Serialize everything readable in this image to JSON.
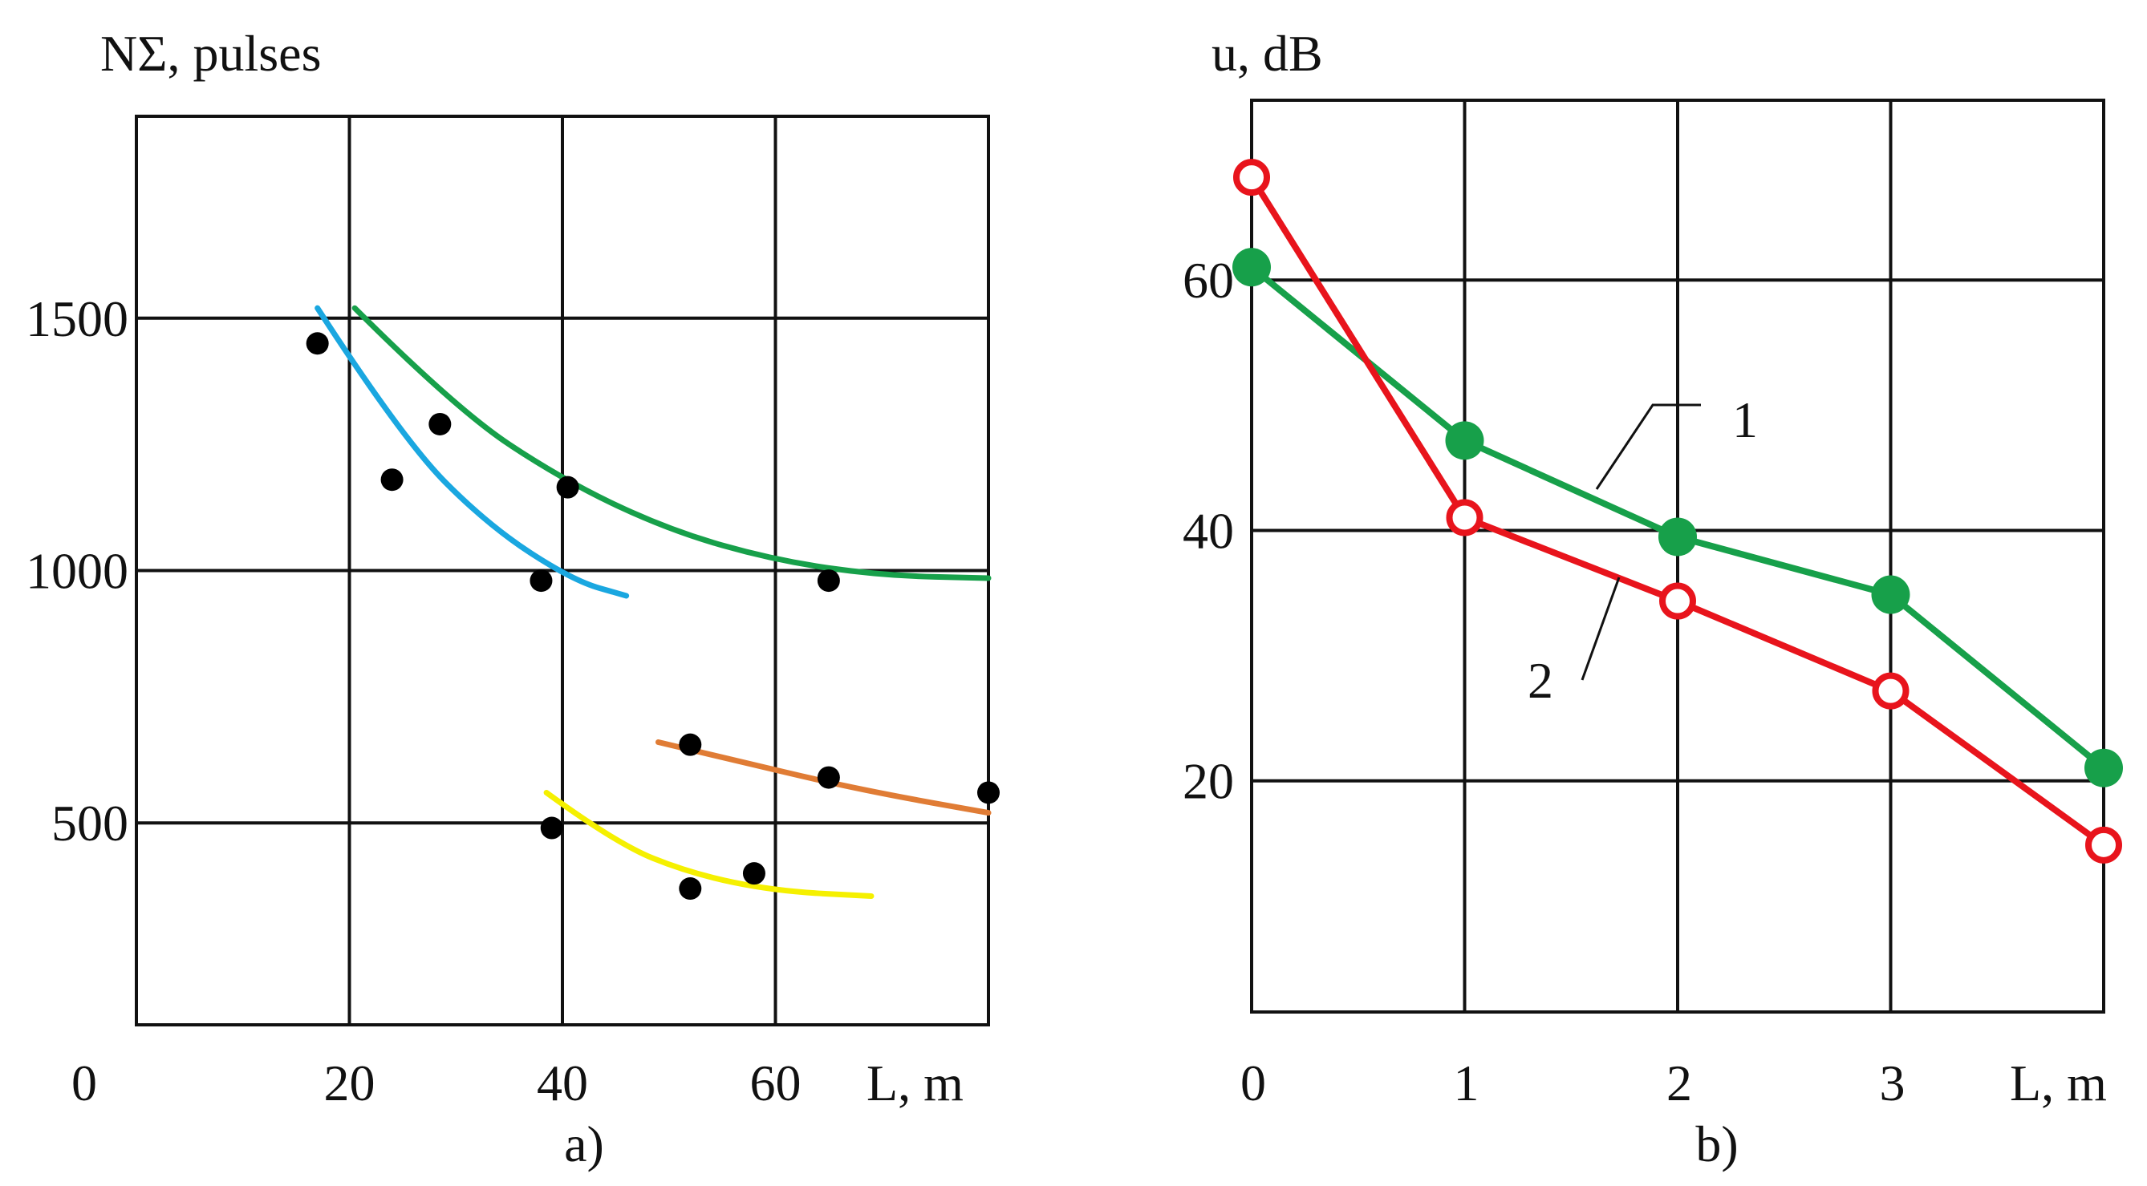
{
  "chart_data": [
    {
      "type": "scatter",
      "panel_label": "a)",
      "ylabel": "NΣ, pulses",
      "xlabel": "L, m",
      "xlim": [
        0,
        80
      ],
      "ylim": [
        100,
        1900
      ],
      "x_gridlines": [
        20,
        40,
        60
      ],
      "y_gridlines": [
        500,
        1000,
        1500
      ],
      "x_ticks": [
        "0",
        "20",
        "40",
        "60"
      ],
      "y_ticks": [
        "500",
        "1000",
        "1500"
      ],
      "grid": true,
      "points": [
        {
          "x": 17,
          "y": 1450
        },
        {
          "x": 24,
          "y": 1180
        },
        {
          "x": 28.5,
          "y": 1290
        },
        {
          "x": 38,
          "y": 980
        },
        {
          "x": 40.5,
          "y": 1165
        },
        {
          "x": 65,
          "y": 980
        },
        {
          "x": 52,
          "y": 655
        },
        {
          "x": 65,
          "y": 590
        },
        {
          "x": 80,
          "y": 560
        },
        {
          "x": 39,
          "y": 490
        },
        {
          "x": 52,
          "y": 370
        },
        {
          "x": 58,
          "y": 400
        }
      ],
      "curves": [
        {
          "color": "#1aa7e0",
          "points": [
            [
              17,
              1520
            ],
            [
              25,
              1260
            ],
            [
              33,
              1090
            ],
            [
              41,
              980
            ],
            [
              46,
              950
            ]
          ]
        },
        {
          "color": "#17a04a",
          "points": [
            [
              20.5,
              1520
            ],
            [
              30,
              1320
            ],
            [
              40,
              1180
            ],
            [
              50,
              1080
            ],
            [
              60,
              1020
            ],
            [
              70,
              990
            ],
            [
              80,
              985
            ]
          ]
        },
        {
          "color": "#e07c35",
          "points": [
            [
              49,
              660
            ],
            [
              57,
              620
            ],
            [
              65,
              580
            ],
            [
              72,
              550
            ],
            [
              80,
              520
            ]
          ]
        },
        {
          "color": "#f5f000",
          "points": [
            [
              38.5,
              560
            ],
            [
              45,
              460
            ],
            [
              52,
              400
            ],
            [
              60,
              365
            ],
            [
              69,
              355
            ]
          ]
        }
      ]
    },
    {
      "type": "line",
      "panel_label": "b)",
      "ylabel": "u, dB",
      "xlabel": "L, m",
      "xlim": [
        0,
        4
      ],
      "ylim": [
        3,
        74
      ],
      "x_gridlines": [
        1,
        2,
        3
      ],
      "y_gridlines": [
        21,
        40.5,
        60
      ],
      "x_ticks": [
        "0",
        "1",
        "2",
        "3"
      ],
      "y_ticks": [
        "20",
        "40",
        "60"
      ],
      "grid": true,
      "series": [
        {
          "name": "1",
          "color": "#17a04a",
          "marker": "filled",
          "x": [
            0,
            1,
            2,
            3,
            4
          ],
          "y": [
            61,
            47.5,
            40,
            35.5,
            22
          ]
        },
        {
          "name": "2",
          "color": "#e8141c",
          "marker": "open",
          "x": [
            0,
            1,
            2,
            3,
            4
          ],
          "y": [
            68,
            41.5,
            35,
            28,
            16
          ]
        }
      ],
      "annotations": [
        "1",
        "2"
      ]
    }
  ]
}
